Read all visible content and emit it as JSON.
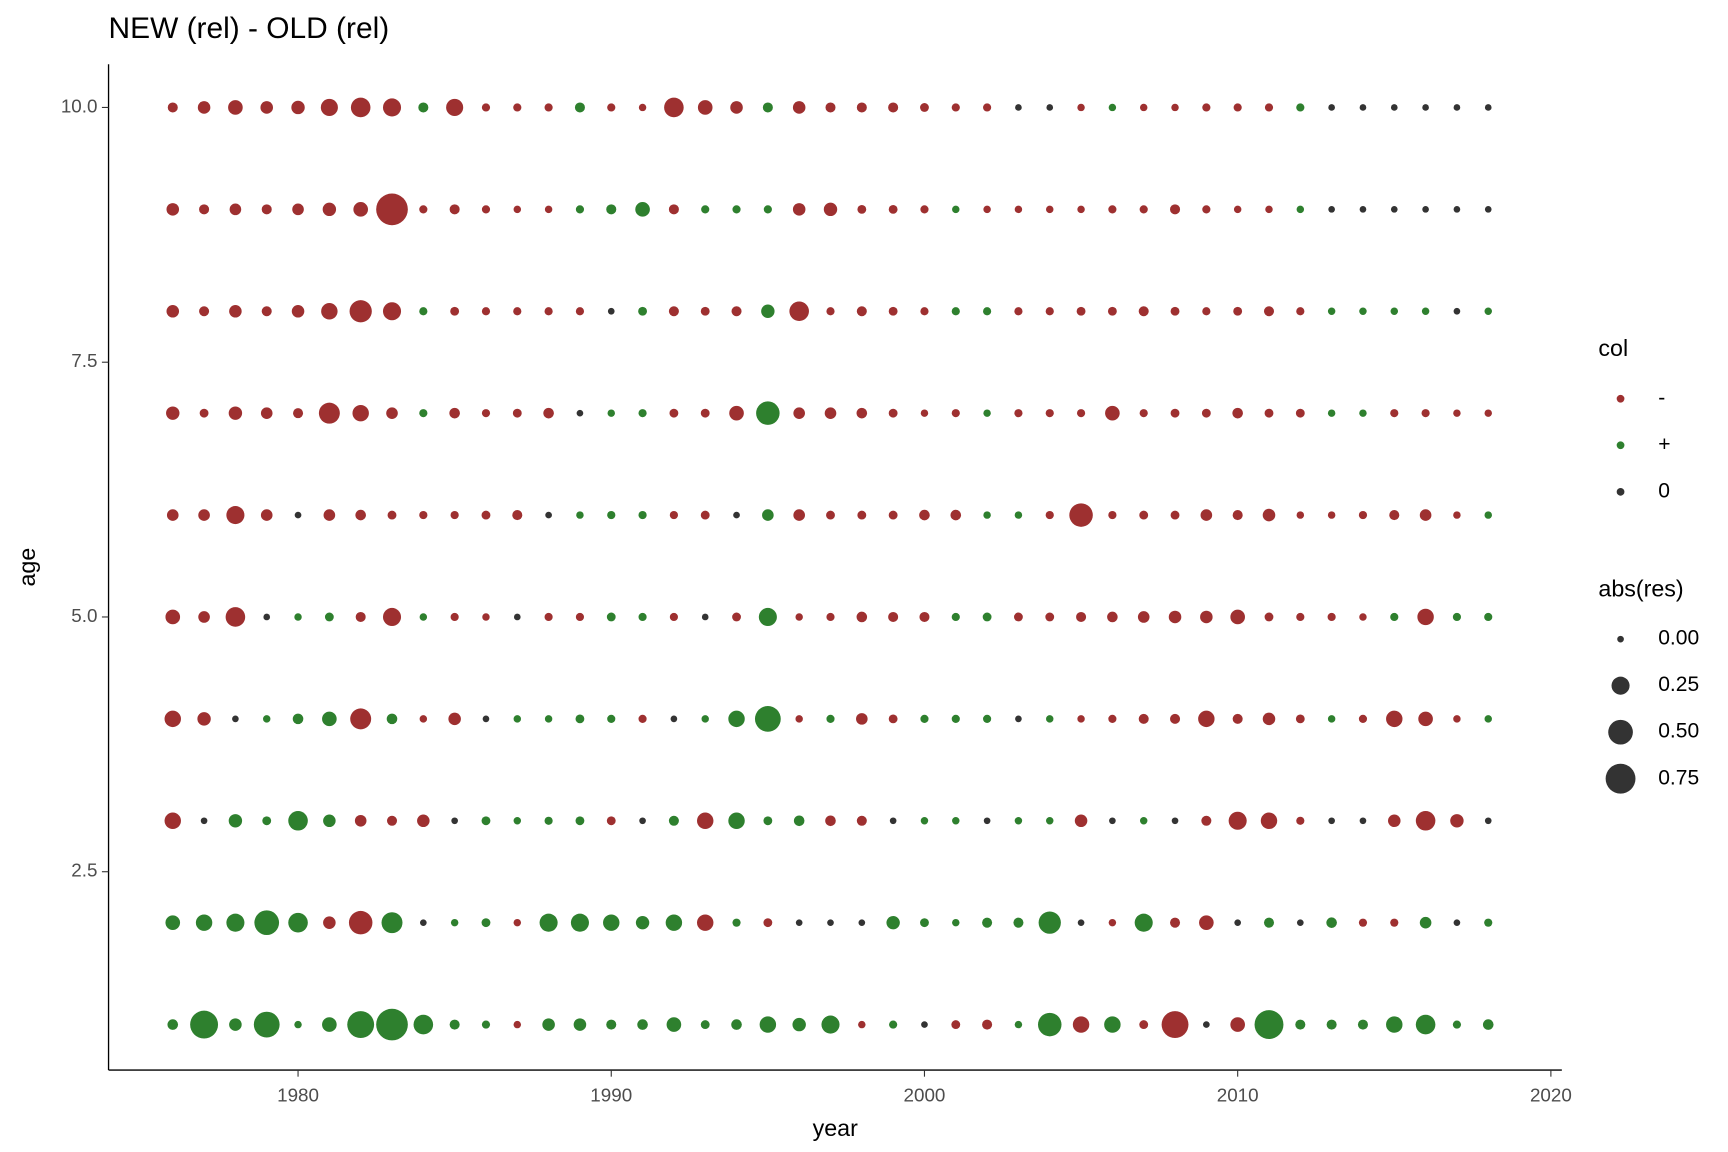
{
  "chart_data": {
    "type": "scatter",
    "title": "NEW (rel) - OLD (rel)",
    "xlabel": "year",
    "ylabel": "age",
    "xlim": [
      1973.95,
      2020.35
    ],
    "ylim": [
      0.554,
      10.424
    ],
    "xticks": [
      1980,
      1990,
      2000,
      2010,
      2020
    ],
    "yticks": [
      2.5,
      {
        "value": 5,
        "label": "5.0"
      },
      7.5,
      {
        "value": 10,
        "label": "10.0"
      }
    ],
    "color_title": "col",
    "colors": [
      {
        "name": "-",
        "color": "#9e3030"
      },
      {
        "name": "+",
        "color": "#2e802e"
      },
      {
        "name": "0",
        "color": "#333333"
      }
    ],
    "size_title": "abs(res)",
    "size_breaks": [
      {
        "value": 0,
        "label": "0.00"
      },
      0.25,
      {
        "value": 0.5,
        "label": "0.50"
      },
      0.75
    ],
    "x": [
      1976,
      1977,
      1978,
      1979,
      1980,
      1981,
      1982,
      1983,
      1984,
      1985,
      1986,
      1987,
      1988,
      1989,
      1990,
      1991,
      1992,
      1993,
      1994,
      1995,
      1996,
      1997,
      1998,
      1999,
      2000,
      2001,
      2002,
      2003,
      2004,
      2005,
      2006,
      2007,
      2008,
      2009,
      2010,
      2011,
      2012,
      2013,
      2014,
      2015,
      2016,
      2017,
      2018
    ],
    "rows": [
      {
        "y": 10,
        "col": [
          "-",
          "-",
          "-",
          "-",
          "-",
          "-",
          "-",
          "-",
          "+",
          "-",
          "-",
          "-",
          "-",
          "+",
          "-",
          "-",
          "-",
          "-",
          "-",
          "+",
          "-",
          "-",
          "-",
          "-",
          "-",
          "-",
          "-",
          "0",
          "0",
          "-",
          "+",
          "-",
          "-",
          "-",
          "-",
          "-",
          "+",
          "0",
          "0",
          "0",
          "0",
          "0",
          "0"
        ],
        "size": [
          0.05,
          0.1,
          0.15,
          0.1,
          0.12,
          0.22,
          0.3,
          0.25,
          0.05,
          0.22,
          0.02,
          0.02,
          0.02,
          0.05,
          0.02,
          0.01,
          0.3,
          0.15,
          0.1,
          0.05,
          0.1,
          0.05,
          0.05,
          0.05,
          0.03,
          0.02,
          0.02,
          0,
          0,
          0.01,
          0.01,
          0.01,
          0.01,
          0.02,
          0.02,
          0.02,
          0.02,
          0,
          0,
          0,
          0,
          0,
          0
        ]
      },
      {
        "y": 9,
        "col": [
          "-",
          "-",
          "-",
          "-",
          "-",
          "-",
          "-",
          "-",
          "-",
          "-",
          "-",
          "-",
          "-",
          "+",
          "+",
          "+",
          "-",
          "+",
          "+",
          "+",
          "-",
          "-",
          "-",
          "-",
          "-",
          "+",
          "-",
          "-",
          "-",
          "-",
          "-",
          "-",
          "-",
          "-",
          "-",
          "-",
          "+",
          "0",
          "0",
          "0",
          "0",
          "0",
          "0"
        ],
        "size": [
          0.1,
          0.05,
          0.08,
          0.05,
          0.08,
          0.12,
          0.15,
          0.85,
          0.02,
          0.05,
          0.02,
          0.01,
          0.01,
          0.02,
          0.05,
          0.15,
          0.05,
          0.02,
          0.02,
          0.02,
          0.1,
          0.12,
          0.03,
          0.03,
          0.02,
          0.01,
          0.01,
          0.01,
          0.01,
          0.01,
          0.02,
          0.02,
          0.05,
          0.02,
          0.01,
          0.01,
          0.01,
          0,
          0,
          0,
          0,
          0,
          0
        ]
      },
      {
        "y": 8,
        "col": [
          "-",
          "-",
          "-",
          "-",
          "-",
          "-",
          "-",
          "-",
          "+",
          "-",
          "-",
          "-",
          "-",
          "-",
          "0",
          "+",
          "-",
          "-",
          "-",
          "+",
          "-",
          "-",
          "-",
          "-",
          "-",
          "+",
          "+",
          "-",
          "-",
          "-",
          "-",
          "-",
          "-",
          "-",
          "-",
          "-",
          "-",
          "+",
          "+",
          "+",
          "+",
          "0",
          "+"
        ],
        "size": [
          0.1,
          0.05,
          0.1,
          0.05,
          0.1,
          0.2,
          0.4,
          0.25,
          0.02,
          0.03,
          0.02,
          0.02,
          0.02,
          0.02,
          0,
          0.03,
          0.05,
          0.03,
          0.05,
          0.12,
          0.3,
          0.02,
          0.05,
          0.03,
          0.02,
          0.02,
          0.02,
          0.02,
          0.02,
          0.03,
          0.03,
          0.05,
          0.03,
          0.02,
          0.03,
          0.05,
          0.02,
          0.01,
          0.01,
          0.01,
          0.01,
          0,
          0.01
        ]
      },
      {
        "y": 7,
        "col": [
          "-",
          "-",
          "-",
          "-",
          "-",
          "-",
          "-",
          "-",
          "+",
          "-",
          "-",
          "-",
          "-",
          "0",
          "+",
          "+",
          "-",
          "-",
          "-",
          "+",
          "-",
          "-",
          "-",
          "-",
          "-",
          "-",
          "+",
          "-",
          "-",
          "-",
          "-",
          "-",
          "-",
          "-",
          "-",
          "-",
          "-",
          "+",
          "+",
          "-",
          "-",
          "-",
          "-"
        ],
        "size": [
          0.12,
          0.03,
          0.12,
          0.08,
          0.05,
          0.35,
          0.2,
          0.08,
          0.02,
          0.06,
          0.02,
          0.03,
          0.06,
          0,
          0.01,
          0.02,
          0.03,
          0.03,
          0.15,
          0.45,
          0.08,
          0.08,
          0.06,
          0.03,
          0.01,
          0.02,
          0.01,
          0.02,
          0.02,
          0.02,
          0.15,
          0.02,
          0.03,
          0.03,
          0.06,
          0.03,
          0.03,
          0.01,
          0.01,
          0.02,
          0.02,
          0.01,
          0.01
        ]
      },
      {
        "y": 6,
        "col": [
          "-",
          "-",
          "-",
          "-",
          "0",
          "-",
          "-",
          "-",
          "-",
          "-",
          "-",
          "-",
          "0",
          "+",
          "+",
          "+",
          "-",
          "-",
          "0",
          "+",
          "-",
          "-",
          "-",
          "-",
          "-",
          "-",
          "+",
          "+",
          "-",
          "-",
          "-",
          "-",
          "-",
          "-",
          "-",
          "-",
          "-",
          "-",
          "-",
          "-",
          "-",
          "-",
          "+"
        ],
        "size": [
          0.08,
          0.08,
          0.25,
          0.08,
          0,
          0.08,
          0.06,
          0.03,
          0.02,
          0.02,
          0.03,
          0.05,
          0,
          0.01,
          0.02,
          0.02,
          0.02,
          0.03,
          0,
          0.08,
          0.08,
          0.03,
          0.03,
          0.03,
          0.06,
          0.06,
          0.01,
          0.01,
          0.02,
          0.45,
          0.02,
          0.03,
          0.03,
          0.08,
          0.05,
          0.1,
          0.01,
          0.01,
          0.02,
          0.05,
          0.08,
          0.01,
          0.01
        ]
      },
      {
        "y": 5,
        "col": [
          "-",
          "-",
          "-",
          "0",
          "+",
          "+",
          "-",
          "-",
          "+",
          "-",
          "-",
          "0",
          "-",
          "-",
          "+",
          "+",
          "-",
          "0",
          "-",
          "+",
          "-",
          "-",
          "-",
          "-",
          "-",
          "+",
          "+",
          "-",
          "-",
          "-",
          "-",
          "-",
          "-",
          "-",
          "-",
          "-",
          "-",
          "-",
          "-",
          "+",
          "-",
          "+",
          "+"
        ],
        "size": [
          0.15,
          0.08,
          0.3,
          0,
          0.01,
          0.03,
          0.05,
          0.25,
          0.01,
          0.02,
          0.01,
          0,
          0.02,
          0.02,
          0.03,
          0.02,
          0.02,
          0,
          0.03,
          0.25,
          0.01,
          0.02,
          0.06,
          0.05,
          0.05,
          0.02,
          0.03,
          0.03,
          0.03,
          0.05,
          0.06,
          0.08,
          0.1,
          0.1,
          0.15,
          0.03,
          0.02,
          0.02,
          0.01,
          0.02,
          0.2,
          0.02,
          0.02
        ]
      },
      {
        "y": 4,
        "col": [
          "-",
          "-",
          "0",
          "+",
          "+",
          "+",
          "-",
          "+",
          "-",
          "-",
          "0",
          "+",
          "+",
          "+",
          "+",
          "-",
          "0",
          "+",
          "+",
          "+",
          "-",
          "+",
          "-",
          "-",
          "+",
          "+",
          "+",
          "0",
          "+",
          "-",
          "-",
          "-",
          "-",
          "-",
          "-",
          "-",
          "-",
          "+",
          "-",
          "-",
          "-",
          "-",
          "+"
        ],
        "size": [
          0.2,
          0.12,
          0,
          0.01,
          0.06,
          0.15,
          0.35,
          0.06,
          0.01,
          0.1,
          0,
          0.01,
          0.01,
          0.03,
          0.02,
          0.02,
          0,
          0.01,
          0.2,
          0.55,
          0.01,
          0.02,
          0.08,
          0.03,
          0.02,
          0.02,
          0.02,
          0,
          0.01,
          0.01,
          0.02,
          0.05,
          0.05,
          0.2,
          0.05,
          0.1,
          0.03,
          0.01,
          0.02,
          0.2,
          0.15,
          0.01,
          0.01
        ]
      },
      {
        "y": 3,
        "col": [
          "-",
          "0",
          "+",
          "+",
          "+",
          "+",
          "-",
          "-",
          "-",
          "0",
          "+",
          "+",
          "+",
          "+",
          "-",
          "0",
          "+",
          "-",
          "+",
          "+",
          "+",
          "-",
          "-",
          "0",
          "+",
          "+",
          "0",
          "+",
          "+",
          "-",
          "0",
          "+",
          "0",
          "-",
          "-",
          "-",
          "-",
          "0",
          "0",
          "-",
          "-",
          "-",
          "0"
        ],
        "size": [
          0.2,
          0,
          0.12,
          0.03,
          0.3,
          0.1,
          0.08,
          0.05,
          0.1,
          0,
          0.03,
          0.01,
          0.02,
          0.03,
          0.03,
          0,
          0.05,
          0.2,
          0.2,
          0.03,
          0.06,
          0.06,
          0.05,
          0,
          0.01,
          0.01,
          0,
          0.01,
          0.01,
          0.1,
          0,
          0.01,
          0,
          0.05,
          0.25,
          0.2,
          0.02,
          0,
          0,
          0.1,
          0.3,
          0.12,
          0
        ]
      },
      {
        "y": 2,
        "col": [
          "+",
          "+",
          "+",
          "+",
          "+",
          "-",
          "-",
          "+",
          "0",
          "+",
          "+",
          "-",
          "+",
          "+",
          "+",
          "+",
          "+",
          "-",
          "+",
          "-",
          "0",
          "0",
          "0",
          "+",
          "+",
          "+",
          "+",
          "+",
          "+",
          "0",
          "-",
          "+",
          "-",
          "-",
          "0",
          "+",
          "0",
          "+",
          "-",
          "-",
          "+",
          "0",
          "+"
        ],
        "size": [
          0.15,
          0.2,
          0.25,
          0.5,
          0.3,
          0.1,
          0.45,
          0.35,
          0,
          0.01,
          0.03,
          0.01,
          0.25,
          0.25,
          0.2,
          0.12,
          0.2,
          0.2,
          0.02,
          0.03,
          0,
          0,
          0,
          0.12,
          0.03,
          0.01,
          0.05,
          0.05,
          0.4,
          0,
          0.01,
          0.25,
          0.05,
          0.15,
          0,
          0.05,
          0,
          0.06,
          0.02,
          0.02,
          0.08,
          0,
          0.02
        ]
      },
      {
        "y": 1,
        "col": [
          "+",
          "+",
          "+",
          "+",
          "+",
          "+",
          "+",
          "+",
          "+",
          "+",
          "+",
          "-",
          "+",
          "+",
          "+",
          "+",
          "+",
          "+",
          "+",
          "+",
          "+",
          "+",
          "-",
          "+",
          "0",
          "-",
          "-",
          "+",
          "+",
          "-",
          "+",
          "-",
          "-",
          "0",
          "-",
          "+",
          "+",
          "+",
          "+",
          "+",
          "+",
          "+",
          "+"
        ],
        "size": [
          0.06,
          0.65,
          0.1,
          0.55,
          0.01,
          0.15,
          0.6,
          0.85,
          0.3,
          0.05,
          0.02,
          0.01,
          0.1,
          0.1,
          0.05,
          0.06,
          0.15,
          0.03,
          0.06,
          0.2,
          0.12,
          0.25,
          0.01,
          0.02,
          0,
          0.03,
          0.05,
          0.01,
          0.45,
          0.2,
          0.2,
          0.03,
          0.6,
          0,
          0.15,
          0.7,
          0.05,
          0.05,
          0.05,
          0.2,
          0.3,
          0.02,
          0.06
        ]
      }
    ]
  }
}
